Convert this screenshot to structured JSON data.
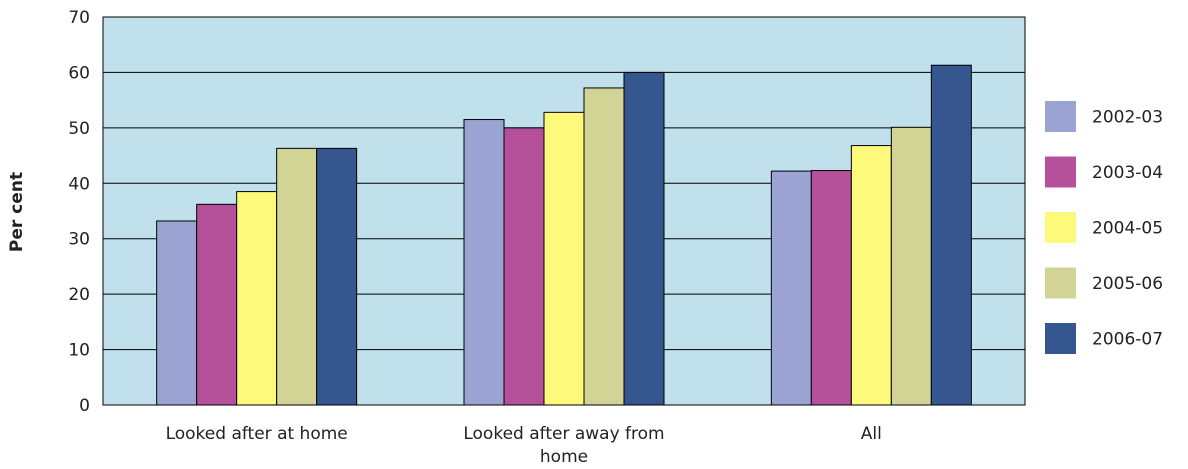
{
  "chart_data": {
    "type": "bar",
    "title": "",
    "xlabel": "",
    "ylabel": "Per cent",
    "ylim": [
      0,
      70
    ],
    "yticks": [
      0,
      10,
      20,
      30,
      40,
      50,
      60,
      70
    ],
    "grid": true,
    "legend_position": "right",
    "plot_background": "#c0e1eb",
    "categories": [
      [
        "Looked after at home"
      ],
      [
        "Looked after away from",
        "home"
      ],
      [
        "All"
      ]
    ],
    "series": [
      {
        "name": "2002-03",
        "color": "#9aa3d2",
        "values": [
          33.2,
          51.5,
          42.2
        ]
      },
      {
        "name": "2003-04",
        "color": "#b5509a",
        "values": [
          36.2,
          50.0,
          42.3
        ]
      },
      {
        "name": "2004-05",
        "color": "#fdf97a",
        "values": [
          38.5,
          52.8,
          46.8
        ]
      },
      {
        "name": "2005-06",
        "color": "#d1d494",
        "values": [
          46.3,
          57.2,
          50.1
        ]
      },
      {
        "name": "2006-07",
        "color": "#35568e",
        "values": [
          46.3,
          60.0,
          61.3
        ]
      }
    ]
  }
}
